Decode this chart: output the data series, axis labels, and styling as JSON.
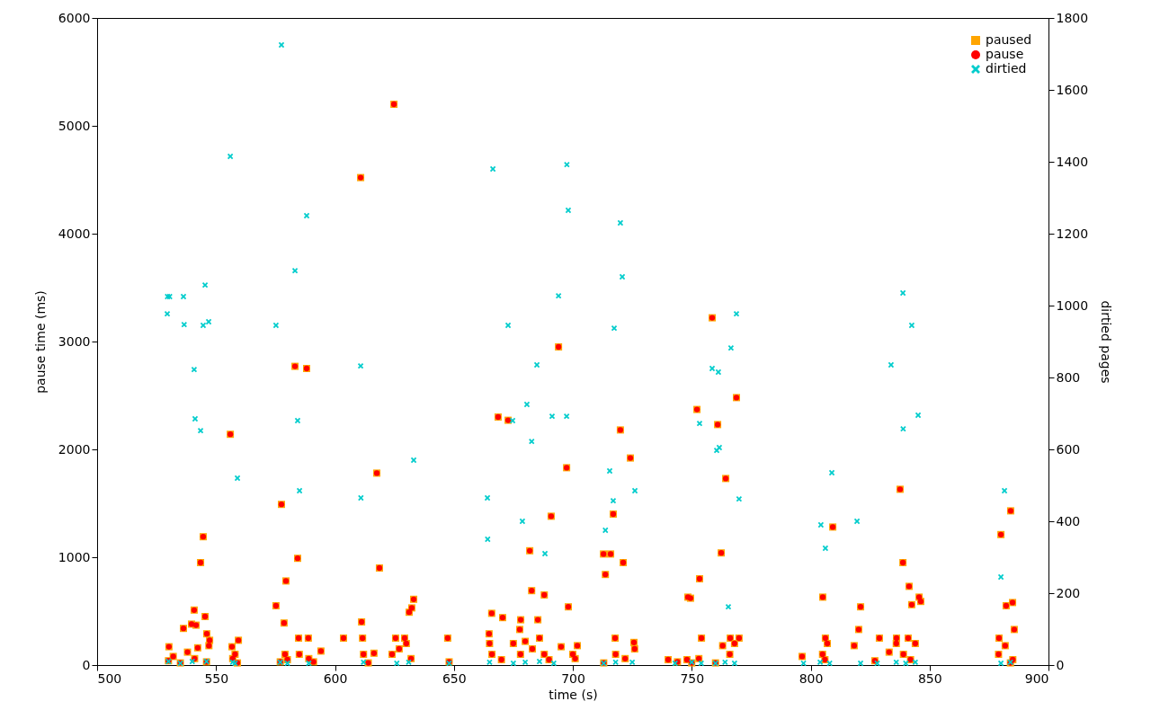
{
  "chart_data": {
    "type": "scatter",
    "xlabel": "time (s)",
    "ylabel": "pause time (ms)",
    "y2label": "dirtied pages",
    "xlim": [
      500,
      900
    ],
    "xticks": [
      500,
      550,
      600,
      650,
      700,
      750,
      800,
      850,
      900
    ],
    "ylim": [
      0,
      6000
    ],
    "yticks": [
      0,
      1000,
      2000,
      3000,
      4000,
      5000,
      6000
    ],
    "y2lim": [
      0,
      1800
    ],
    "y2ticks": [
      0,
      200,
      400,
      600,
      800,
      1000,
      1200,
      1400,
      1600,
      1800
    ],
    "legend": "top right",
    "series": [
      {
        "name": "paused",
        "color": "#ffa500",
        "marker": "square",
        "x": [
          530.2,
          536.3,
          540.8,
          539.7,
          541.6,
          542.3,
          543.5,
          544.6,
          545.4,
          546.1,
          547.3,
          556,
          556.7,
          559.4,
          575.2,
          577.5,
          578.6,
          579.4,
          583.2,
          584.3,
          584.7,
          588.1,
          588.8,
          594.1,
          603.6,
          610.8,
          611.2,
          611.6,
          616.4,
          617.6,
          618.7,
          624.8,
          625.5,
          631.2,
          632.3,
          633.1,
          629.3,
          647.4,
          664.8,
          665.9,
          668.6,
          670.5,
          672.8,
          678.1,
          677.7,
          681.9,
          682.7,
          685.3,
          688,
          690.9,
          694,
          697.4,
          698.1,
          695.1,
          701.9,
          712.9,
          713.7,
          715.9,
          717,
          717.8,
          720,
          721.2,
          724.2,
          725.7,
          740.1,
          748.4,
          749.5,
          752.2,
          753.3,
          754.1,
          758.6,
          760.9,
          762.4,
          764.3,
          766.2,
          768.8,
          769.9,
          796.4,
          805.1,
          806.2,
          809.3,
          821,
          820.2,
          818.3,
          828.9,
          836.1,
          837.6,
          838.8,
          841.4,
          842.5,
          845.6,
          846.3,
          841,
          880,
          884.1,
          882.2,
          884.9,
          885.6,
          879.2,
          881.8,
          530,
          532,
          535,
          538,
          541,
          546,
          547,
          557,
          558,
          559,
          577,
          579,
          580,
          585,
          589,
          591,
          612,
          614,
          624,
          627,
          630,
          632,
          648,
          665,
          666,
          670,
          675,
          678,
          680,
          683,
          686,
          688,
          690,
          700,
          701,
          713,
          718,
          722,
          726,
          744,
          748,
          750,
          753,
          760,
          763,
          766,
          768,
          805,
          806,
          807,
          827,
          833,
          836,
          839,
          842,
          844,
          879,
          884,
          885
        ],
        "values": [
          170,
          340,
          510,
          380,
          370,
          160,
          950,
          1190,
          450,
          290,
          230,
          2140,
          170,
          230,
          550,
          1490,
          390,
          780,
          2770,
          990,
          250,
          2750,
          250,
          130,
          250,
          4520,
          400,
          250,
          110,
          1780,
          900,
          5200,
          250,
          490,
          530,
          610,
          250,
          250,
          290,
          480,
          2300,
          440,
          2270,
          420,
          330,
          1060,
          690,
          420,
          650,
          1380,
          2950,
          1830,
          540,
          170,
          180,
          1030,
          840,
          1030,
          1400,
          250,
          2180,
          950,
          1920,
          210,
          50,
          630,
          620,
          2370,
          800,
          250,
          3220,
          2230,
          1040,
          1730,
          250,
          2480,
          250,
          80,
          630,
          250,
          1280,
          540,
          330,
          180,
          250,
          250,
          1630,
          950,
          730,
          560,
          630,
          590,
          250,
          1210,
          1430,
          550,
          580,
          330,
          250,
          180,
          40,
          80,
          20,
          120,
          60,
          30,
          180,
          60,
          100,
          20,
          30,
          100,
          50,
          100,
          60,
          30,
          100,
          20,
          100,
          150,
          200,
          60,
          30,
          200,
          100,
          50,
          200,
          100,
          220,
          150,
          250,
          100,
          50,
          100,
          60,
          20,
          100,
          60,
          150,
          30,
          50,
          20,
          60,
          20,
          180,
          100,
          200,
          100,
          50,
          200,
          40,
          120,
          200,
          100,
          50,
          200,
          100,
          20,
          50
        ]
      },
      {
        "name": "pause",
        "color": "#ff0000",
        "marker": "circle",
        "x": [
          530.2,
          536.3,
          540.8,
          539.7,
          541.6,
          542.3,
          543.5,
          544.6,
          545.4,
          546.1,
          547.3,
          556,
          556.7,
          559.4,
          575.2,
          577.5,
          578.6,
          579.4,
          583.2,
          584.3,
          584.7,
          588.1,
          588.8,
          594.1,
          603.6,
          610.8,
          611.2,
          611.6,
          616.4,
          617.6,
          618.7,
          624.8,
          625.5,
          631.2,
          632.3,
          633.1,
          629.3,
          647.4,
          664.8,
          665.9,
          668.6,
          670.5,
          672.8,
          678.1,
          677.7,
          681.9,
          682.7,
          685.3,
          688,
          690.9,
          694,
          697.4,
          698.1,
          695.1,
          701.9,
          712.9,
          713.7,
          715.9,
          717,
          717.8,
          720,
          721.2,
          724.2,
          725.7,
          740.1,
          748.4,
          749.5,
          752.2,
          753.3,
          754.1,
          758.6,
          760.9,
          762.4,
          764.3,
          766.2,
          768.8,
          769.9,
          796.4,
          805.1,
          806.2,
          809.3,
          821,
          820.2,
          818.3,
          828.9,
          836.1,
          837.6,
          838.8,
          841.4,
          842.5,
          845.6,
          846.3,
          841,
          880,
          884.1,
          882.2,
          884.9,
          885.6,
          879.2,
          881.8,
          530,
          532,
          535,
          538,
          541,
          546,
          547,
          557,
          558,
          559,
          577,
          579,
          580,
          585,
          589,
          591,
          612,
          614,
          624,
          627,
          630,
          632,
          648,
          665,
          666,
          670,
          675,
          678,
          680,
          683,
          686,
          688,
          690,
          700,
          701,
          713,
          718,
          722,
          726,
          744,
          748,
          750,
          753,
          760,
          763,
          766,
          768,
          805,
          806,
          807,
          827,
          833,
          836,
          839,
          842,
          844,
          879,
          884,
          885
        ],
        "values": [
          170,
          340,
          510,
          380,
          370,
          160,
          950,
          1190,
          450,
          290,
          230,
          2140,
          170,
          230,
          550,
          1490,
          390,
          780,
          2770,
          990,
          250,
          2750,
          250,
          130,
          250,
          4520,
          400,
          250,
          110,
          1780,
          900,
          5200,
          250,
          490,
          530,
          610,
          250,
          250,
          290,
          480,
          2300,
          440,
          2270,
          420,
          330,
          1060,
          690,
          420,
          650,
          1380,
          2950,
          1830,
          540,
          170,
          180,
          1030,
          840,
          1030,
          1400,
          250,
          2180,
          950,
          1920,
          210,
          50,
          630,
          620,
          2370,
          800,
          250,
          3220,
          2230,
          1040,
          1730,
          250,
          2480,
          250,
          80,
          630,
          250,
          1280,
          540,
          330,
          180,
          250,
          250,
          1630,
          950,
          730,
          560,
          630,
          590,
          250,
          1210,
          1430,
          550,
          580,
          330,
          250,
          180,
          40,
          80,
          20,
          120,
          60,
          30,
          180,
          60,
          100,
          20,
          30,
          100,
          50,
          100,
          60,
          30,
          100,
          20,
          100,
          150,
          200,
          60,
          30,
          200,
          100,
          50,
          200,
          100,
          220,
          150,
          250,
          100,
          50,
          100,
          60,
          20,
          100,
          60,
          150,
          30,
          50,
          20,
          60,
          20,
          180,
          100,
          200,
          100,
          50,
          200,
          40,
          120,
          200,
          100,
          50,
          200,
          100,
          20,
          50
        ]
      },
      {
        "name": "dirtied",
        "color": "#00cccc",
        "marker": "cross",
        "axis": "y2",
        "x": [
          529.5,
          529.6,
          530.5,
          536.3,
          536.6,
          540.8,
          541.2,
          543.5,
          544.6,
          545.4,
          546.9,
          556,
          559,
          575.2,
          577.5,
          583.2,
          584.3,
          585.1,
          588.1,
          610.8,
          610.9,
          633.1,
          664.1,
          664.2,
          666.4,
          672.8,
          674.7,
          678.8,
          680.7,
          682.7,
          684.9,
          688.3,
          691.3,
          694,
          697.4,
          697.5,
          698.1,
          713.7,
          715.5,
          717,
          717.4,
          720,
          720.8,
          726.1,
          758.6,
          761.2,
          760.5,
          761.6,
          753.3,
          765.4,
          766.5,
          768.8,
          769.9,
          804.3,
          806.2,
          808.9,
          819.5,
          833.8,
          838.8,
          838.9,
          842.5,
          845.2,
          881.5,
          880,
          530,
          535,
          540,
          546,
          557,
          558,
          577,
          580,
          589,
          612,
          626,
          631,
          648,
          665,
          675,
          680,
          686,
          692,
          713,
          718,
          725,
          743,
          750,
          754,
          760,
          764,
          768,
          797,
          804,
          808,
          821,
          828,
          836,
          840,
          844,
          880,
          884
        ],
        "values": [
          977,
          1025,
          1025,
          1025,
          947,
          822,
          685,
          652,
          945,
          1057,
          955,
          1415,
          520,
          945,
          1725,
          1097,
          680,
          485,
          1250,
          832,
          465,
          570,
          465,
          350,
          1380,
          945,
          680,
          400,
          725,
          622,
          835,
          310,
          692,
          1027,
          692,
          1392,
          1265,
          375,
          540,
          457,
          937,
          1230,
          1080,
          485,
          825,
          815,
          597,
          605,
          672,
          162,
          882,
          977,
          462,
          390,
          325,
          535,
          400,
          835,
          1035,
          657,
          945,
          695,
          485,
          245,
          10,
          5,
          10,
          10,
          8,
          5,
          8,
          5,
          5,
          8,
          5,
          8,
          5,
          8,
          5,
          8,
          10,
          5,
          5,
          8,
          8,
          5,
          8,
          5,
          5,
          8,
          5,
          5,
          8,
          5,
          5,
          5,
          8,
          5,
          8,
          5,
          8
        ]
      }
    ]
  }
}
